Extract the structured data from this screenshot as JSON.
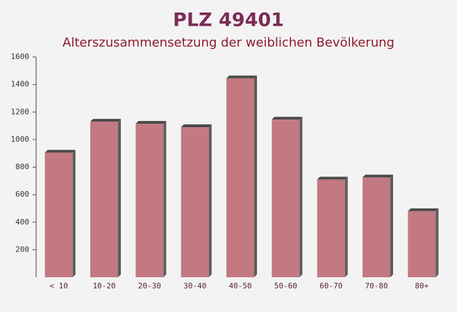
{
  "chart_data": {
    "type": "bar",
    "title": "PLZ 49401",
    "subtitle": "Alterszusammensetzung der weiblichen Bevölkerung",
    "categories": [
      "< 10",
      "10-20",
      "20-30",
      "30-40",
      "40-50",
      "50-60",
      "60-70",
      "70-80",
      "80+"
    ],
    "values": [
      905,
      1130,
      1115,
      1090,
      1445,
      1145,
      710,
      725,
      480
    ],
    "color": "#b8636d",
    "ylim": [
      0,
      1600
    ],
    "yticks": [
      200,
      400,
      600,
      800,
      1000,
      1200,
      1400,
      1600
    ]
  }
}
